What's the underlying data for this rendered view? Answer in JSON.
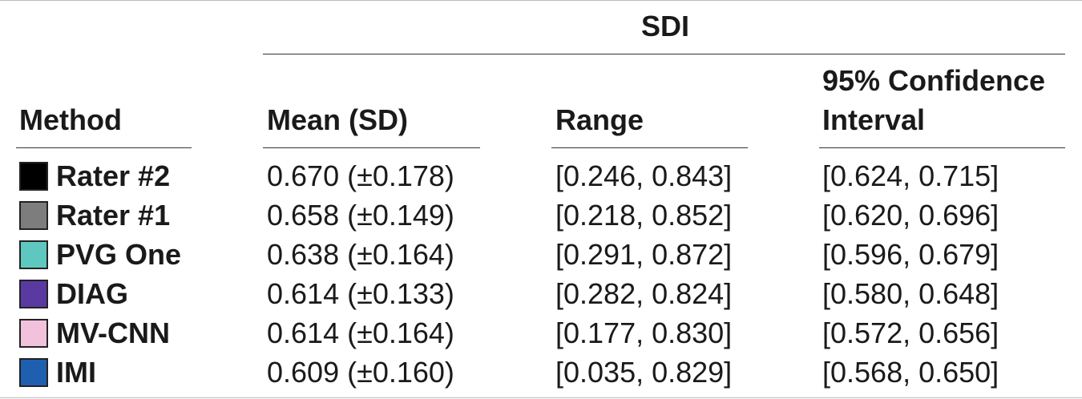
{
  "table": {
    "group_header": "SDI",
    "columns": {
      "method": "Method",
      "mean": "Mean (SD)",
      "range": "Range",
      "ci_line1": "95% Confidence",
      "ci_line2": "Interval"
    },
    "rows": [
      {
        "method": "Rater #2",
        "color": "#000000",
        "mean": "0.670 (±0.178)",
        "range": "[0.246, 0.843]",
        "ci": "[0.624, 0.715]"
      },
      {
        "method": "Rater #1",
        "color": "#7d7d7d",
        "mean": "0.658 (±0.149)",
        "range": "[0.218, 0.852]",
        "ci": "[0.620, 0.696]"
      },
      {
        "method": "PVG One",
        "color": "#5ec8c0",
        "mean": "0.638 (±0.164)",
        "range": "[0.291, 0.872]",
        "ci": "[0.596, 0.679]"
      },
      {
        "method": "DIAG",
        "color": "#5a3aa0",
        "mean": "0.614 (±0.133)",
        "range": "[0.282, 0.824]",
        "ci": "[0.580, 0.648]"
      },
      {
        "method": "MV-CNN",
        "color": "#f2c2dc",
        "mean": "0.614 (±0.164)",
        "range": "[0.177, 0.830]",
        "ci": "[0.572, 0.656]"
      },
      {
        "method": "IMI",
        "color": "#1f5fb0",
        "mean": "0.609 (±0.160)",
        "range": "[0.035, 0.829]",
        "ci": "[0.568, 0.650]"
      }
    ]
  }
}
